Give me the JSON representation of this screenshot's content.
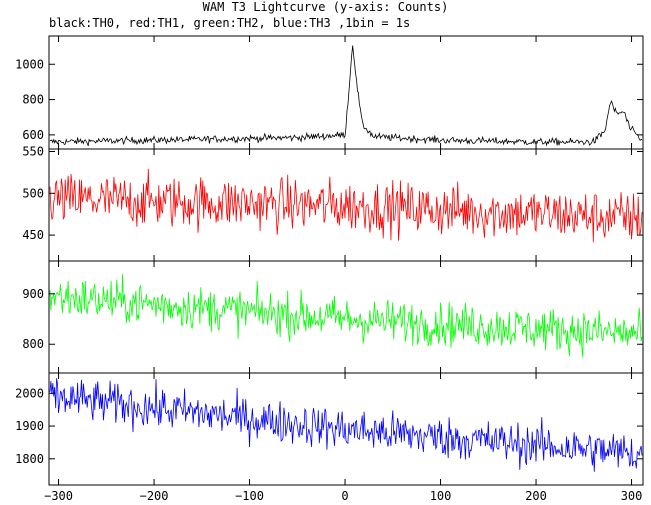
{
  "chart_data": {
    "type": "line",
    "title": "WAM T3 Lightcurve (y-axis: Counts)",
    "subtitle": "black:TH0, red:TH1, green:TH2, blue:TH3 ,1bin = 1s",
    "x_range": [
      -310,
      312
    ],
    "x_ticks": [
      -300,
      -200,
      -100,
      0,
      100,
      200,
      300
    ],
    "x_tick_labels": [
      "−300",
      "−200",
      "−100",
      "0",
      "100",
      "200",
      "300"
    ],
    "panels": [
      {
        "name": "TH0",
        "color": "#000000",
        "ylim": [
          520,
          1160
        ],
        "y_ticks": [
          600,
          800,
          1000
        ],
        "y_tick_labels": [
          "600",
          "800",
          "1000"
        ],
        "baseline": [
          [
            -310,
            560
          ],
          [
            -150,
            575
          ],
          [
            -50,
            585
          ],
          [
            0,
            600
          ],
          [
            4,
            850
          ],
          [
            8,
            1120
          ],
          [
            12,
            900
          ],
          [
            18,
            660
          ],
          [
            30,
            590
          ],
          [
            100,
            570
          ],
          [
            200,
            560
          ],
          [
            260,
            560
          ],
          [
            272,
            620
          ],
          [
            278,
            790
          ],
          [
            284,
            720
          ],
          [
            292,
            730
          ],
          [
            298,
            640
          ],
          [
            312,
            560
          ]
        ],
        "noise": 14
      },
      {
        "name": "TH1",
        "color": "#ff0000",
        "ylim": [
          419,
          553
        ],
        "y_ticks": [
          450,
          500,
          550
        ],
        "y_tick_labels": [
          "450",
          "500",
          "550"
        ],
        "baseline": [
          [
            -310,
            493
          ],
          [
            0,
            485
          ],
          [
            312,
            470
          ]
        ],
        "noise": 22
      },
      {
        "name": "TH2",
        "color": "#00ff00",
        "ylim": [
          743,
          965
        ],
        "y_ticks": [
          800,
          900
        ],
        "y_tick_labels": [
          "800",
          "900"
        ],
        "baseline": [
          [
            -310,
            895
          ],
          [
            0,
            850
          ],
          [
            312,
            820
          ]
        ],
        "noise": 30
      },
      {
        "name": "TH3",
        "color": "#0000ff",
        "ylim": [
          1720,
          2062
        ],
        "y_ticks": [
          1800,
          1900,
          2000
        ],
        "y_tick_labels": [
          "1800",
          "1900",
          "2000"
        ],
        "baseline": [
          [
            -310,
            1990
          ],
          [
            0,
            1890
          ],
          [
            312,
            1815
          ]
        ],
        "noise": 45
      }
    ],
    "grid": false,
    "legend": "none"
  }
}
